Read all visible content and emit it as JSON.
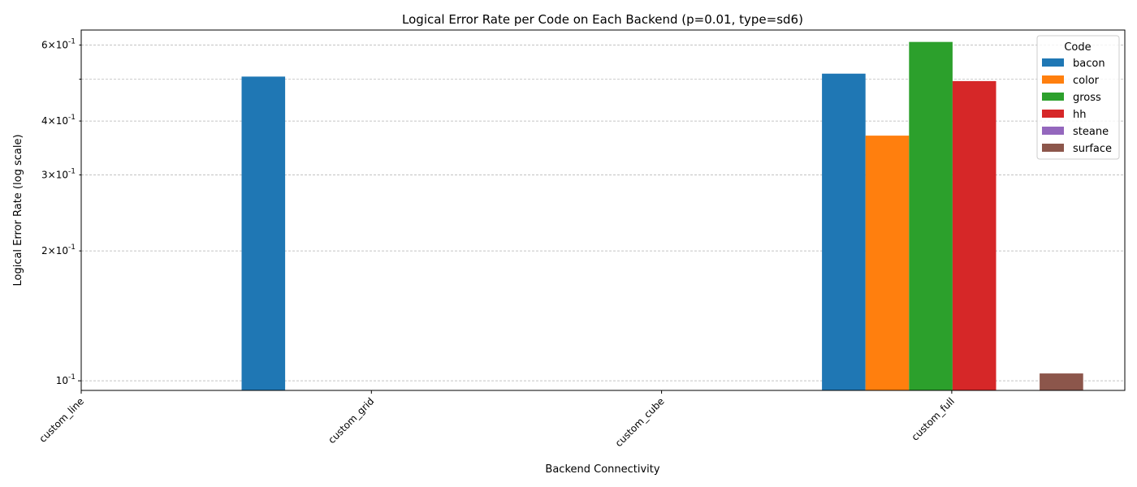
{
  "chart_data": {
    "type": "bar",
    "title": "Logical Error Rate per Code on Each Backend (p=0.01, type=sd6)",
    "xlabel": "Backend Connectivity",
    "ylabel": "Logical Error Rate (log scale)",
    "yscale": "log",
    "ylim": [
      0.095,
      0.65
    ],
    "grid": "y-major-and-minor",
    "categories": [
      "custom_line",
      "custom_grid",
      "custom_cube",
      "custom_full"
    ],
    "y_major_ticks": [
      {
        "value": 0.1,
        "label": "10^-1"
      }
    ],
    "y_minor_ticks": [
      {
        "value": 0.2,
        "label": "2×10^-1"
      },
      {
        "value": 0.3,
        "label": "3×10^-1"
      },
      {
        "value": 0.4,
        "label": "4×10^-1"
      },
      {
        "value": 0.5,
        "label": ""
      },
      {
        "value": 0.6,
        "label": "6×10^-1"
      }
    ],
    "legend": {
      "title": "Code",
      "position": "top-right"
    },
    "series": [
      {
        "name": "bacon",
        "color": "#1f77b4",
        "values": [
          null,
          0.507,
          null,
          0.515
        ]
      },
      {
        "name": "color",
        "color": "#ff7f0e",
        "values": [
          null,
          null,
          null,
          0.37
        ]
      },
      {
        "name": "gross",
        "color": "#2ca02c",
        "values": [
          null,
          null,
          null,
          0.61
        ]
      },
      {
        "name": "hh",
        "color": "#d62728",
        "values": [
          null,
          null,
          null,
          0.495
        ]
      },
      {
        "name": "steane",
        "color": "#9467bd",
        "values": [
          null,
          null,
          null,
          null
        ]
      },
      {
        "name": "surface",
        "color": "#8c564b",
        "values": [
          null,
          null,
          null,
          0.104
        ]
      }
    ]
  }
}
